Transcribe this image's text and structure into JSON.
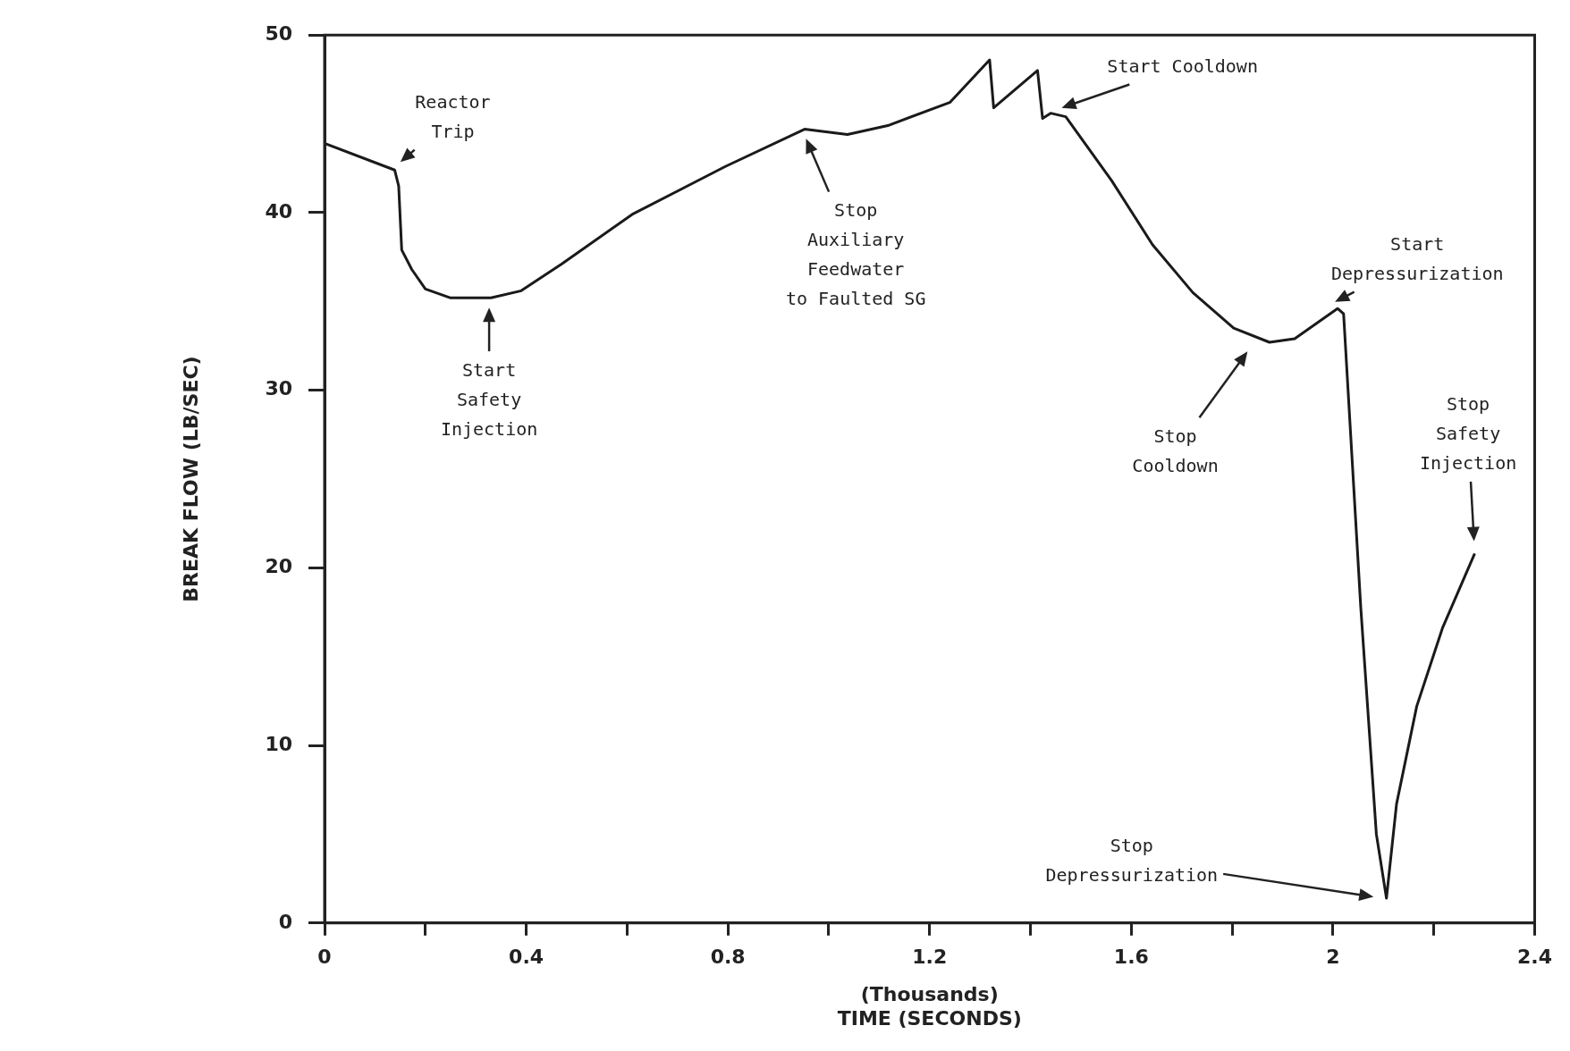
{
  "chart_data": {
    "type": "line",
    "xlabel": "(Thousands)\nTIME (SECONDS)",
    "ylabel": "BREAK FLOW (LB/SEC)",
    "x": [
      0,
      0.139,
      0.147,
      0.153,
      0.173,
      0.2,
      0.25,
      0.33,
      0.39,
      0.47,
      0.61,
      0.795,
      0.952,
      1.037,
      1.117,
      1.24,
      1.319,
      1.327,
      1.414,
      1.424,
      1.44,
      1.47,
      1.561,
      1.642,
      1.722,
      1.803,
      1.874,
      1.924,
      2.009,
      2.021,
      2.055,
      2.086,
      2.106,
      2.126,
      2.166,
      2.217,
      2.281
    ],
    "series": [
      {
        "color": "#1a1a1a",
        "values": [
          43.9,
          42.4,
          41.5,
          37.9,
          36.8,
          35.7,
          35.2,
          35.2,
          35.6,
          37.1,
          39.9,
          42.6,
          44.7,
          44.4,
          44.9,
          46.2,
          48.6,
          45.9,
          48.0,
          45.3,
          45.6,
          45.4,
          41.8,
          38.2,
          35.5,
          33.5,
          32.7,
          32.9,
          34.6,
          34.3,
          17.8,
          5.0,
          1.4,
          6.7,
          12.2,
          16.6,
          20.8
        ]
      }
    ],
    "xlim": [
      0,
      2.4
    ],
    "xticks": [
      0,
      {
        "value": 0.2,
        "label": null
      },
      0.4,
      {
        "value": 0.6,
        "label": null
      },
      0.8,
      {
        "value": 1.0,
        "label": null
      },
      1.2,
      {
        "value": 1.4,
        "label": null
      },
      1.6,
      {
        "value": 1.8,
        "label": null
      },
      2,
      {
        "value": 2.2,
        "label": null
      },
      2.4
    ],
    "ylim": [
      0,
      50
    ],
    "yticks": [
      0,
      10,
      20,
      30,
      40,
      50
    ],
    "grid": false,
    "legend": false,
    "marker": "none",
    "line_style": "solid",
    "annotations": [
      "Reactor\nTrip",
      "Start\nSafety\nInjection",
      "Stop\nAuxiliary\nFeedwater\nto Faulted SG",
      "Start Cooldown",
      "Stop\nCooldown",
      "Start\nDepressurization",
      "Stop\nDepressurization",
      "Stop\nSafety\nInjection"
    ]
  }
}
